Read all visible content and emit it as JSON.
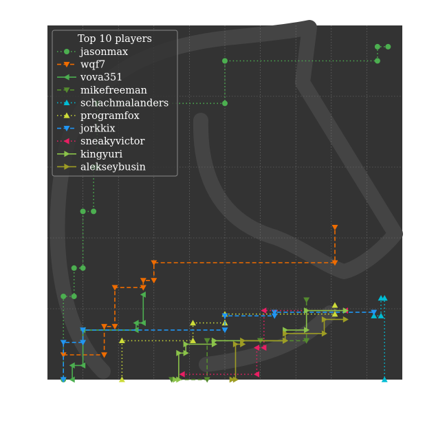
{
  "chart_data": {
    "type": "line",
    "title": "",
    "xlabel": "",
    "ylabel": "",
    "xlim": [
      0,
      100
    ],
    "ylim": [
      0,
      100
    ],
    "grid": true,
    "background_color": "#333333",
    "grid_color": "#777777",
    "legend": {
      "title": "Top 10 players",
      "placement": "top-left"
    },
    "series": [
      {
        "name": "jasonmax",
        "color": "#4caf50",
        "dash": "1.5,3.5",
        "marker": "circle",
        "points": [
          [
            4.5,
            0
          ],
          [
            4.5,
            23.5
          ],
          [
            7.5,
            23.5
          ],
          [
            7.5,
            31.5
          ],
          [
            10,
            31.5
          ],
          [
            10,
            47.5
          ],
          [
            13,
            47.5
          ],
          [
            13,
            60
          ],
          [
            14,
            60
          ],
          [
            14,
            78
          ],
          [
            50,
            78
          ],
          [
            50,
            90
          ],
          [
            93,
            90
          ],
          [
            93,
            94
          ],
          [
            96,
            94
          ]
        ]
      },
      {
        "name": "wqf7",
        "color": "#ef6c00",
        "dash": "6,3.5",
        "marker": "triangle-down",
        "points": [
          [
            4.5,
            7
          ],
          [
            16,
            7
          ],
          [
            16,
            15
          ],
          [
            19,
            15
          ],
          [
            19,
            26
          ],
          [
            27,
            26
          ],
          [
            27,
            28
          ],
          [
            30,
            28
          ],
          [
            30,
            33
          ],
          [
            81,
            33
          ],
          [
            81,
            43
          ]
        ]
      },
      {
        "name": "vova351",
        "color": "#4caf50",
        "dash": "",
        "marker": "triangle-left",
        "points": [
          [
            7,
            0
          ],
          [
            7,
            4
          ],
          [
            10,
            4
          ],
          [
            10,
            14
          ],
          [
            25,
            14
          ],
          [
            25,
            16
          ],
          [
            27,
            16
          ],
          [
            27,
            24
          ]
        ]
      },
      {
        "name": "mikefreeman",
        "color": "#558b2f",
        "dash": "6,3.5",
        "marker": "triangle-down",
        "points": [
          [
            35,
            0
          ],
          [
            45,
            0
          ],
          [
            45,
            11
          ],
          [
            60,
            11
          ],
          [
            60,
            11
          ],
          [
            73,
            11
          ],
          [
            73,
            22.5
          ]
        ]
      },
      {
        "name": "schachmalanders",
        "color": "#00bcd4",
        "dash": "1.5,3.5",
        "marker": "triangle-up",
        "points": [
          [
            92,
            18
          ],
          [
            94,
            18
          ],
          [
            94,
            23
          ],
          [
            95,
            23
          ],
          [
            95,
            0
          ]
        ]
      },
      {
        "name": "programfox",
        "color": "#cddc39",
        "dash": "1.5,3.5",
        "marker": "triangle-up",
        "points": [
          [
            21,
            0
          ],
          [
            21,
            11
          ],
          [
            41,
            11
          ],
          [
            41,
            16
          ],
          [
            50,
            16
          ],
          [
            50,
            18.5
          ],
          [
            81,
            18.5
          ],
          [
            81,
            21
          ]
        ]
      },
      {
        "name": "jorkkix",
        "color": "#2196f3",
        "dash": "6,3.5",
        "marker": "triangle-down",
        "points": [
          [
            4.5,
            0
          ],
          [
            4.5,
            10.5
          ],
          [
            10,
            10.5
          ],
          [
            10,
            14
          ],
          [
            50,
            14
          ],
          [
            50,
            18
          ],
          [
            64,
            18
          ],
          [
            64,
            19
          ],
          [
            92,
            19
          ]
        ]
      },
      {
        "name": "sneakyvictor",
        "color": "#e91e63",
        "dash": "1.5,3.5",
        "marker": "triangle-left",
        "points": [
          [
            38,
            1.5
          ],
          [
            59,
            1.5
          ],
          [
            59,
            9
          ],
          [
            61,
            9
          ],
          [
            61,
            19.5
          ],
          [
            84,
            19.5
          ]
        ]
      },
      {
        "name": "kingyuri",
        "color": "#8bc34a",
        "dash": "",
        "marker": "triangle-right",
        "points": [
          [
            36,
            0
          ],
          [
            37,
            0
          ],
          [
            37,
            7.5
          ],
          [
            39,
            7.5
          ],
          [
            39,
            10
          ],
          [
            47,
            10
          ],
          [
            47,
            11
          ],
          [
            67,
            11
          ],
          [
            67,
            14
          ],
          [
            73,
            14
          ],
          [
            73,
            19.5
          ],
          [
            84,
            19.5
          ]
        ]
      },
      {
        "name": "alekseybusin",
        "color": "#9e9d24",
        "dash": "",
        "marker": "triangle-right",
        "points": [
          [
            52,
            0
          ],
          [
            53,
            0
          ],
          [
            53,
            10
          ],
          [
            55,
            10
          ],
          [
            55,
            11
          ],
          [
            67,
            11
          ],
          [
            67,
            13
          ],
          [
            78,
            13
          ],
          [
            78,
            17
          ],
          [
            84,
            17
          ]
        ]
      }
    ]
  }
}
